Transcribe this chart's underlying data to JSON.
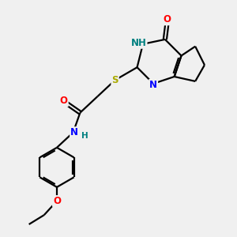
{
  "background_color": "#f0f0f0",
  "bond_color": "#000000",
  "atom_colors": {
    "O": "#ff0000",
    "N": "#0000ff",
    "S": "#aaaa00",
    "NH_color": "#008080",
    "C": "#000000"
  },
  "figsize": [
    3.0,
    3.0
  ],
  "dpi": 100
}
